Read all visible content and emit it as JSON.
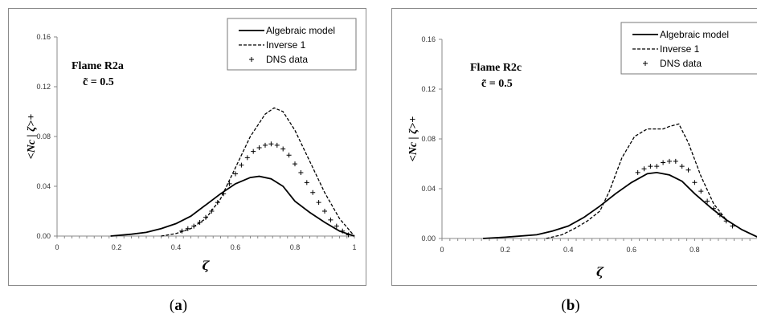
{
  "captions": [
    "(a)",
    "(b)"
  ],
  "chart_data": [
    {
      "type": "line",
      "annotation": "Flame R2a",
      "annotation2": "c̃ = 0.5",
      "xlabel": "ζ",
      "ylabel": "<Nc | ζ>+",
      "xlim": [
        0,
        1
      ],
      "ylim": [
        0,
        0.16
      ],
      "xticks": [
        "0",
        "0.2",
        "0.4",
        "0.6",
        "0.8",
        "1"
      ],
      "yticks": [
        "0.00",
        "0.04",
        "0.08",
        "0.12",
        "0.16"
      ],
      "legend": [
        "Algebraic model",
        "Inverse 1",
        "DNS data"
      ],
      "legend_position": "top-right",
      "grid": false,
      "series": [
        {
          "name": "Algebraic model",
          "style": "solid",
          "x": [
            0.18,
            0.25,
            0.3,
            0.35,
            0.4,
            0.45,
            0.5,
            0.55,
            0.6,
            0.65,
            0.68,
            0.72,
            0.76,
            0.8,
            0.85,
            0.9,
            0.95,
            1.0
          ],
          "y": [
            0.0,
            0.0015,
            0.003,
            0.006,
            0.01,
            0.016,
            0.025,
            0.034,
            0.042,
            0.047,
            0.048,
            0.046,
            0.04,
            0.028,
            0.019,
            0.011,
            0.004,
            0.0
          ]
        },
        {
          "name": "Inverse 1",
          "style": "dashed",
          "x": [
            0.35,
            0.4,
            0.45,
            0.5,
            0.55,
            0.6,
            0.65,
            0.7,
            0.73,
            0.76,
            0.8,
            0.85,
            0.9,
            0.95,
            1.0
          ],
          "y": [
            0.0,
            0.002,
            0.006,
            0.014,
            0.03,
            0.055,
            0.08,
            0.098,
            0.103,
            0.1,
            0.085,
            0.06,
            0.035,
            0.014,
            0.0
          ]
        },
        {
          "name": "DNS data",
          "style": "plus",
          "x": [
            0.42,
            0.44,
            0.46,
            0.48,
            0.5,
            0.52,
            0.54,
            0.56,
            0.58,
            0.6,
            0.62,
            0.64,
            0.66,
            0.68,
            0.7,
            0.72,
            0.74,
            0.76,
            0.78,
            0.8,
            0.82,
            0.84,
            0.86,
            0.88,
            0.9,
            0.92,
            0.94,
            0.96,
            0.98
          ],
          "y": [
            0.004,
            0.006,
            0.008,
            0.011,
            0.015,
            0.02,
            0.027,
            0.034,
            0.042,
            0.05,
            0.057,
            0.063,
            0.068,
            0.071,
            0.073,
            0.074,
            0.073,
            0.07,
            0.065,
            0.058,
            0.051,
            0.043,
            0.035,
            0.027,
            0.02,
            0.013,
            0.008,
            0.004,
            0.001
          ]
        }
      ]
    },
    {
      "type": "line",
      "annotation": "Flame R2c",
      "annotation2": "c̃ = 0.5",
      "xlabel": "ζ",
      "ylabel": "<Nc | ζ>+",
      "xlim": [
        0,
        1
      ],
      "ylim": [
        0,
        0.16
      ],
      "xticks": [
        "0",
        "0.2",
        "0.4",
        "0.6",
        "0.8"
      ],
      "yticks": [
        "0.00",
        "0.04",
        "0.08",
        "0.12",
        "0.16"
      ],
      "legend": [
        "Algebraic model",
        "Inverse 1",
        "DNS data"
      ],
      "legend_position": "top-right",
      "grid": false,
      "series": [
        {
          "name": "Algebraic model",
          "style": "solid",
          "x": [
            0.13,
            0.2,
            0.3,
            0.35,
            0.4,
            0.45,
            0.5,
            0.55,
            0.6,
            0.65,
            0.68,
            0.72,
            0.76,
            0.8,
            0.85,
            0.9,
            0.95,
            1.0
          ],
          "y": [
            0.0,
            0.001,
            0.003,
            0.006,
            0.01,
            0.017,
            0.026,
            0.036,
            0.045,
            0.052,
            0.053,
            0.051,
            0.046,
            0.036,
            0.025,
            0.015,
            0.007,
            0.001
          ]
        },
        {
          "name": "Inverse 1",
          "style": "dashed",
          "x": [
            0.33,
            0.38,
            0.42,
            0.46,
            0.5,
            0.53,
            0.57,
            0.61,
            0.65,
            0.7,
            0.72,
            0.75,
            0.78,
            0.82,
            0.86,
            0.9
          ],
          "y": [
            0.0,
            0.003,
            0.008,
            0.014,
            0.022,
            0.038,
            0.065,
            0.082,
            0.088,
            0.088,
            0.09,
            0.092,
            0.077,
            0.05,
            0.028,
            0.015
          ]
        },
        {
          "name": "DNS data",
          "style": "plus",
          "x": [
            0.62,
            0.64,
            0.66,
            0.68,
            0.7,
            0.72,
            0.74,
            0.76,
            0.78,
            0.8,
            0.82,
            0.84,
            0.86,
            0.88,
            0.9,
            0.92
          ],
          "y": [
            0.053,
            0.056,
            0.058,
            0.058,
            0.061,
            0.062,
            0.062,
            0.058,
            0.055,
            0.045,
            0.038,
            0.03,
            0.024,
            0.019,
            0.014,
            0.01
          ]
        }
      ]
    }
  ]
}
